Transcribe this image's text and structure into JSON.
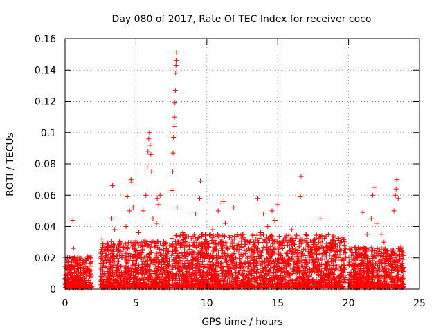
{
  "chart_data": {
    "type": "scatter",
    "title": "Day 080 of 2017, Rate Of TEC Index for receiver coco",
    "xlabel": "GPS time / hours",
    "ylabel": "ROTI / TECUs",
    "xlim": [
      0,
      25
    ],
    "ylim": [
      0,
      0.16
    ],
    "xticks": [
      0,
      5,
      10,
      15,
      20,
      25
    ],
    "xtick_labels": [
      "0",
      "5",
      "10",
      "15",
      "20",
      "25"
    ],
    "yticks": [
      0,
      0.02,
      0.04,
      0.06,
      0.08,
      0.1,
      0.12,
      0.14,
      0.16
    ],
    "ytick_labels": [
      "0",
      "0.02",
      "0.04",
      "0.06",
      "0.08",
      "0.1",
      "0.12",
      "0.14",
      "0.16"
    ],
    "grid": true,
    "marker": "+",
    "color": "#ff0000",
    "series": [
      {
        "name": "ROTI",
        "points": [
          [
            0.2,
            0.004
          ],
          [
            0.3,
            0.012
          ],
          [
            0.5,
            0.008
          ],
          [
            0.55,
            0.044
          ],
          [
            0.6,
            0.026
          ],
          [
            0.7,
            0.015
          ],
          [
            0.9,
            0.006
          ],
          [
            1.1,
            0.01
          ],
          [
            1.3,
            0.018
          ],
          [
            1.5,
            0.008
          ],
          [
            1.7,
            0.021
          ],
          [
            1.85,
            0.012
          ],
          [
            2.6,
            0.032
          ],
          [
            2.8,
            0.018
          ],
          [
            3.1,
            0.028
          ],
          [
            3.3,
            0.045
          ],
          [
            3.35,
            0.066
          ],
          [
            3.5,
            0.038
          ],
          [
            3.7,
            0.022
          ],
          [
            3.9,
            0.03
          ],
          [
            4.1,
            0.025
          ],
          [
            4.3,
            0.04
          ],
          [
            4.4,
            0.059
          ],
          [
            4.55,
            0.05
          ],
          [
            4.65,
            0.07
          ],
          [
            4.7,
            0.068
          ],
          [
            4.8,
            0.052
          ],
          [
            5.0,
            0.03
          ],
          [
            5.2,
            0.036
          ],
          [
            5.5,
            0.05
          ],
          [
            5.7,
            0.06
          ],
          [
            5.8,
            0.078
          ],
          [
            5.85,
            0.088
          ],
          [
            5.9,
            0.096
          ],
          [
            5.95,
            0.1
          ],
          [
            6.0,
            0.092
          ],
          [
            6.05,
            0.086
          ],
          [
            6.1,
            0.075
          ],
          [
            6.2,
            0.045
          ],
          [
            6.45,
            0.042
          ],
          [
            6.5,
            0.058
          ],
          [
            6.6,
            0.054
          ],
          [
            6.7,
            0.06
          ],
          [
            6.9,
            0.028
          ],
          [
            7.1,
            0.018
          ],
          [
            7.55,
            0.063
          ],
          [
            7.6,
            0.075
          ],
          [
            7.62,
            0.087
          ],
          [
            7.65,
            0.097
          ],
          [
            7.7,
            0.104
          ],
          [
            7.72,
            0.11
          ],
          [
            7.75,
            0.119
          ],
          [
            7.78,
            0.127
          ],
          [
            7.8,
            0.138
          ],
          [
            7.82,
            0.143
          ],
          [
            7.84,
            0.146
          ],
          [
            7.86,
            0.151
          ],
          [
            7.9,
            0.052
          ],
          [
            8.0,
            0.03
          ],
          [
            8.3,
            0.036
          ],
          [
            8.6,
            0.028
          ],
          [
            8.9,
            0.032
          ],
          [
            9.2,
            0.048
          ],
          [
            9.5,
            0.058
          ],
          [
            9.55,
            0.069
          ],
          [
            9.7,
            0.035
          ],
          [
            10.0,
            0.03
          ],
          [
            10.4,
            0.038
          ],
          [
            10.8,
            0.05
          ],
          [
            11.0,
            0.055
          ],
          [
            11.2,
            0.056
          ],
          [
            11.3,
            0.042
          ],
          [
            11.6,
            0.033
          ],
          [
            11.9,
            0.052
          ],
          [
            12.2,
            0.028
          ],
          [
            12.6,
            0.035
          ],
          [
            13.0,
            0.03
          ],
          [
            13.3,
            0.03
          ],
          [
            13.6,
            0.058
          ],
          [
            13.8,
            0.036
          ],
          [
            14.0,
            0.048
          ],
          [
            14.3,
            0.04
          ],
          [
            14.6,
            0.05
          ],
          [
            14.8,
            0.044
          ],
          [
            15.0,
            0.054
          ],
          [
            15.3,
            0.03
          ],
          [
            15.7,
            0.028
          ],
          [
            16.0,
            0.038
          ],
          [
            16.3,
            0.035
          ],
          [
            16.6,
            0.059
          ],
          [
            16.65,
            0.072
          ],
          [
            17.0,
            0.03
          ],
          [
            17.5,
            0.03
          ],
          [
            18.0,
            0.045
          ],
          [
            18.5,
            0.028
          ],
          [
            19.0,
            0.024
          ],
          [
            19.4,
            0.03
          ],
          [
            19.7,
            0.025
          ],
          [
            20.2,
            0.022
          ],
          [
            20.5,
            0.018
          ],
          [
            20.9,
            0.026
          ],
          [
            21.0,
            0.049
          ],
          [
            21.3,
            0.035
          ],
          [
            21.6,
            0.045
          ],
          [
            21.7,
            0.06
          ],
          [
            21.8,
            0.065
          ],
          [
            22.0,
            0.042
          ],
          [
            22.3,
            0.035
          ],
          [
            22.5,
            0.03
          ],
          [
            23.0,
            0.025
          ],
          [
            23.2,
            0.05
          ],
          [
            23.3,
            0.06
          ],
          [
            23.35,
            0.064
          ],
          [
            23.4,
            0.07
          ],
          [
            23.5,
            0.058
          ],
          [
            23.8,
            0.022
          ]
        ]
      }
    ],
    "dense_bands": [
      {
        "x_start": 0.0,
        "x_end": 1.9,
        "y_max": 0.02
      },
      {
        "x_start": 2.5,
        "x_end": 7.4,
        "y_max": 0.03
      },
      {
        "x_start": 7.5,
        "x_end": 19.8,
        "y_max": 0.034
      },
      {
        "x_start": 20.0,
        "x_end": 23.9,
        "y_max": 0.026
      }
    ]
  }
}
